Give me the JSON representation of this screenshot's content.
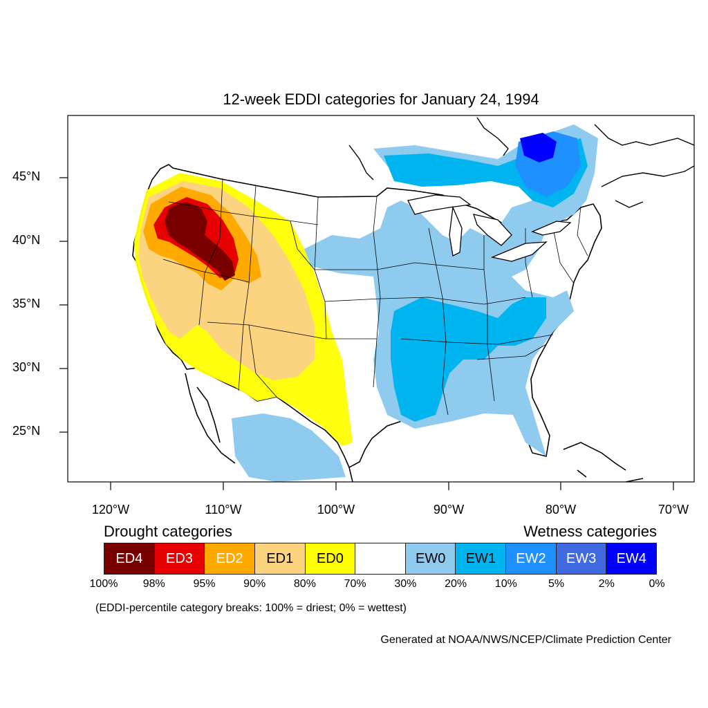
{
  "title": "12-week EDDI categories for January 24, 1994",
  "map": {
    "lat_labels": [
      "45°N",
      "40°N",
      "35°N",
      "30°N",
      "25°N"
    ],
    "lon_labels": [
      "120°W",
      "110°W",
      "100°W",
      "90°W",
      "80°W",
      "70°W"
    ]
  },
  "legend": {
    "drought_heading": "Drought categories",
    "wetness_heading": "Wetness categories",
    "categories": [
      {
        "label": "ED4",
        "color": "#7a0000",
        "text_color": "#ffffff"
      },
      {
        "label": "ED3",
        "color": "#e60000",
        "text_color": "#ffffff"
      },
      {
        "label": "ED2",
        "color": "#ffaa00",
        "text_color": "#ffffff"
      },
      {
        "label": "ED1",
        "color": "#fcd37f",
        "text_color": "#000000"
      },
      {
        "label": "ED0",
        "color": "#ffff00",
        "text_color": "#000000"
      },
      {
        "label": "",
        "color": "#ffffff",
        "text_color": "#000000"
      },
      {
        "label": "EW0",
        "color": "#8fcbef",
        "text_color": "#000000"
      },
      {
        "label": "EW1",
        "color": "#00b4f0",
        "text_color": "#000000"
      },
      {
        "label": "EW2",
        "color": "#1e90ff",
        "text_color": "#ffffff"
      },
      {
        "label": "EW3",
        "color": "#4169e1",
        "text_color": "#ffffff"
      },
      {
        "label": "EW4",
        "color": "#0000ff",
        "text_color": "#ffffff"
      }
    ],
    "breaks": [
      "100%",
      "98%",
      "95%",
      "90%",
      "80%",
      "70%",
      "30%",
      "20%",
      "10%",
      "5%",
      "2%",
      "0%"
    ],
    "note": "(EDDI-percentile category breaks: 100% = driest; 0% = wettest)"
  },
  "credit": "Generated at NOAA/NWS/NCEP/Climate Prediction Center"
}
